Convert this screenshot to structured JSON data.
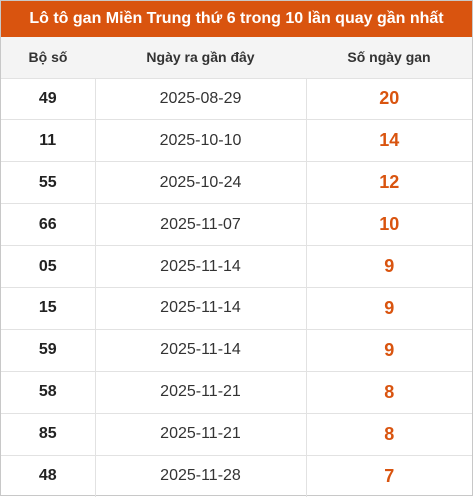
{
  "title": "Lô tô gan Miền Trung thứ 6 trong 10 lần quay gần nhất",
  "columns": [
    "Bộ số",
    "Ngày ra gần đây",
    "Số ngày gan"
  ],
  "rows": [
    {
      "number": "49",
      "date": "2025-08-29",
      "days": "20"
    },
    {
      "number": "11",
      "date": "2025-10-10",
      "days": "14"
    },
    {
      "number": "55",
      "date": "2025-10-24",
      "days": "12"
    },
    {
      "number": "66",
      "date": "2025-11-07",
      "days": "10"
    },
    {
      "number": "05",
      "date": "2025-11-14",
      "days": "9"
    },
    {
      "number": "15",
      "date": "2025-11-14",
      "days": "9"
    },
    {
      "number": "59",
      "date": "2025-11-14",
      "days": "9"
    },
    {
      "number": "58",
      "date": "2025-11-21",
      "days": "8"
    },
    {
      "number": "85",
      "date": "2025-11-21",
      "days": "8"
    },
    {
      "number": "48",
      "date": "2025-11-28",
      "days": "7"
    }
  ],
  "colors": {
    "header": "#d9540f",
    "accent": "#d9540f"
  }
}
